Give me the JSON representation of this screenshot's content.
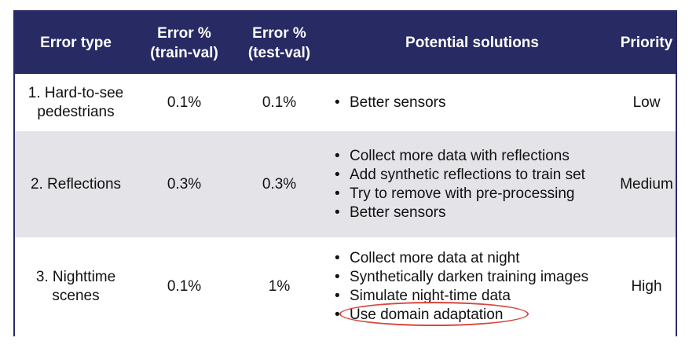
{
  "table": {
    "headers": {
      "error_type": "Error type",
      "train_val_line1": "Error %",
      "train_val_line2": "(train-val)",
      "test_val_line1": "Error %",
      "test_val_line2": "(test-val)",
      "solutions": "Potential solutions",
      "priority": "Priority"
    },
    "rows": [
      {
        "type_line1": "1. Hard-to-see",
        "type_line2": "pedestrians",
        "train_val": "0.1%",
        "test_val": "0.1%",
        "solutions": [
          "Better sensors"
        ],
        "priority": "Low"
      },
      {
        "type_line1": "2. Reflections",
        "train_val": "0.3%",
        "test_val": "0.3%",
        "solutions": [
          "Collect more data with reflections",
          "Add synthetic reflections to train set",
          "Try to remove with pre-processing",
          "Better sensors"
        ],
        "priority": "Medium"
      },
      {
        "type_line1": "3. Nighttime",
        "type_line2": "scenes",
        "train_val": "0.1%",
        "test_val": "1%",
        "solutions": [
          "Collect more data at night",
          "Synthetically darken training images",
          "Simulate night-time data",
          "Use domain adaptation"
        ],
        "priority": "High"
      }
    ]
  },
  "colors": {
    "header_bg": "#272a63",
    "stripe_bg": "#e4e4e8",
    "highlight_circle": "#d9453c"
  }
}
